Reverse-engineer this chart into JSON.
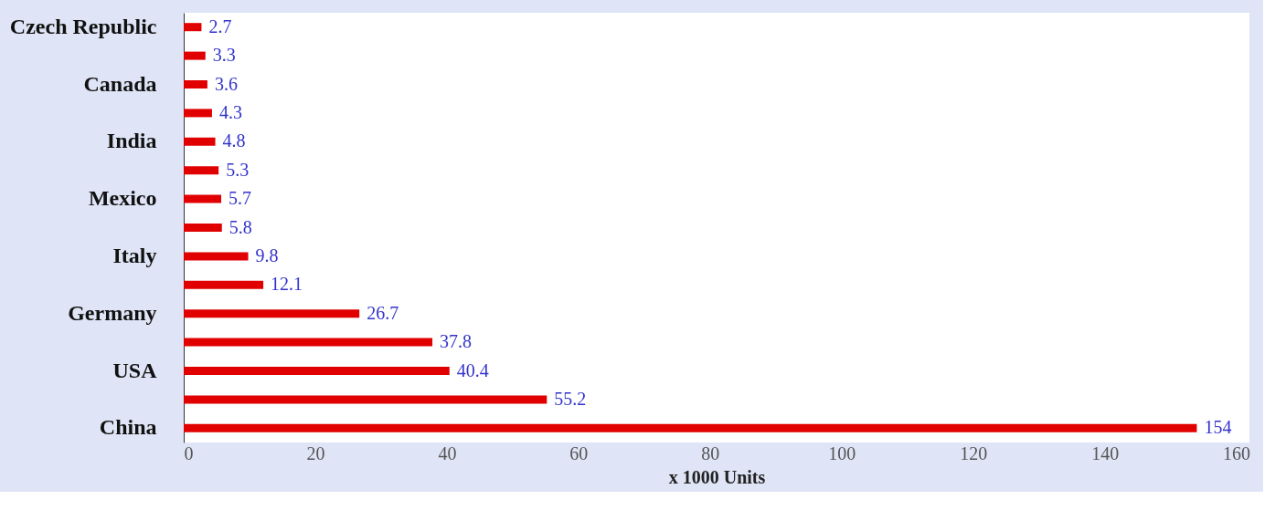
{
  "chart_data": {
    "type": "bar",
    "orientation": "horizontal",
    "xlabel": "x 1000 Units",
    "categories": [
      "Czech Republic",
      null,
      "Canada",
      null,
      "India",
      null,
      "Mexico",
      null,
      "Italy",
      null,
      "Germany",
      null,
      "USA",
      null,
      "China"
    ],
    "values": [
      2.7,
      3.3,
      3.6,
      4.3,
      4.8,
      5.3,
      5.7,
      5.8,
      9.8,
      12.1,
      26.7,
      37.8,
      40.4,
      55.2,
      154
    ],
    "color": "#e00000",
    "data_labels": true,
    "xlim": [
      0,
      162
    ],
    "xticks": [
      0,
      20,
      40,
      60,
      80,
      100,
      120,
      140,
      160
    ],
    "grid": false
  }
}
